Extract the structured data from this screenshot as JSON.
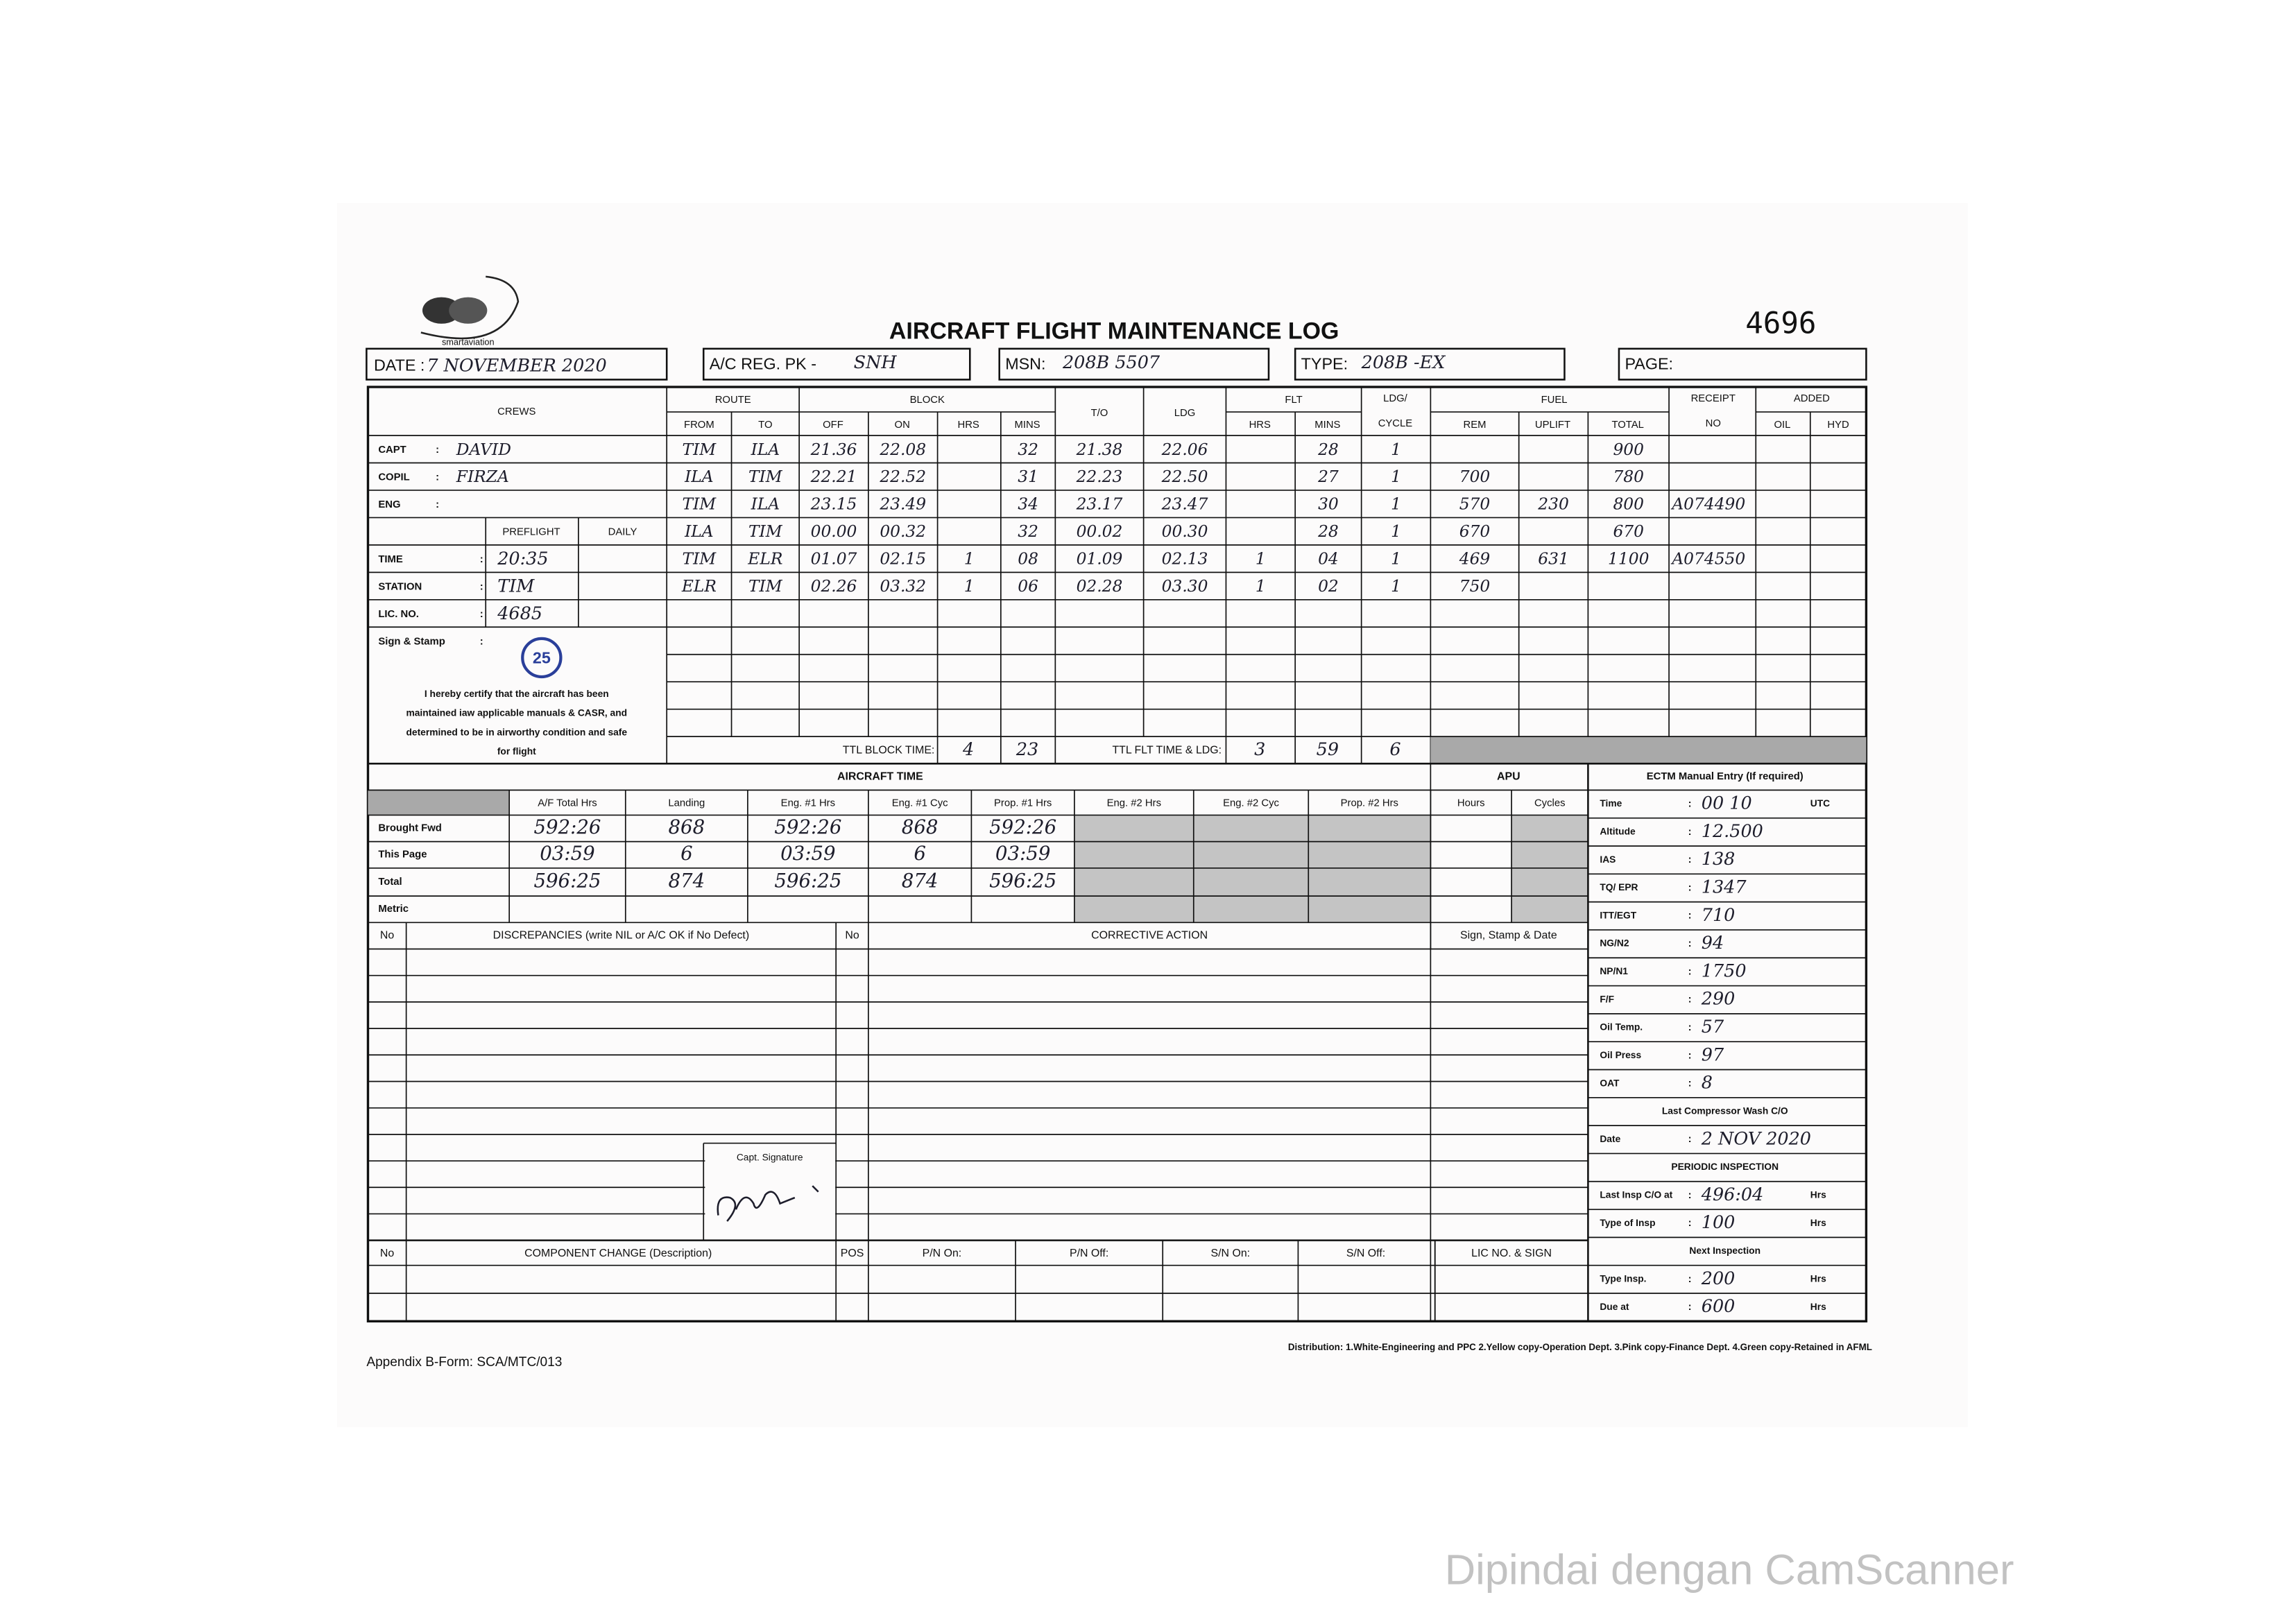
{
  "separator": ":",
  "header": {
    "logo": "smartaviation",
    "title": "AIRCRAFT FLIGHT MAINTENANCE LOG",
    "serial": "4696",
    "date_label": "DATE :",
    "date": "7 NOVEMBER 2020",
    "reg_label": "A/C REG. PK -",
    "reg": "SNH",
    "msn_label": "MSN:",
    "msn": "208B 5507",
    "type_label": "TYPE:",
    "type": "208B -EX",
    "page_label": "PAGE:"
  },
  "flight_log": {
    "group_headers": [
      "CREWS",
      "ROUTE",
      "BLOCK",
      "T/O",
      "LDG",
      "FLT",
      "LDG/",
      "CYCLE",
      "FUEL",
      "RECEIPT",
      "NO",
      "ADDED"
    ],
    "sub_headers": [
      "FROM",
      "TO",
      "OFF",
      "ON",
      "HRS",
      "MINS",
      "HRS",
      "MINS",
      "REM",
      "UPLIFT",
      "TOTAL",
      "OIL",
      "HYD"
    ],
    "crews": [
      {
        "label": "CAPT",
        "value": "DAVID"
      },
      {
        "label": "COPIL",
        "value": "FIRZA"
      },
      {
        "label": "ENG",
        "value": null
      }
    ],
    "rows": [
      [
        "TIM",
        "ILA",
        "21.36",
        "22.08",
        null,
        "32",
        "21.38",
        "22.06",
        null,
        "28",
        "1",
        null,
        null,
        "900",
        null
      ],
      [
        "ILA",
        "TIM",
        "22.21",
        "22.52",
        null,
        "31",
        "22.23",
        "22.50",
        null,
        "27",
        "1",
        "700",
        null,
        "780",
        null
      ],
      [
        "TIM",
        "ILA",
        "23.15",
        "23.49",
        null,
        "34",
        "23.17",
        "23.47",
        null,
        "30",
        "1",
        "570",
        "230",
        "800",
        "A074490"
      ],
      [
        "ILA",
        "TIM",
        "00.00",
        "00.32",
        null,
        "32",
        "00.02",
        "00.30",
        null,
        "28",
        "1",
        "670",
        null,
        "670",
        null
      ],
      [
        "TIM",
        "ELR",
        "01.07",
        "02.15",
        "1",
        "08",
        "01.09",
        "02.13",
        "1",
        "04",
        "1",
        "469",
        "631",
        "1100",
        "A074550"
      ],
      [
        "ELR",
        "TIM",
        "02.26",
        "03.32",
        "1",
        "06",
        "02.28",
        "03.30",
        "1",
        "02",
        "1",
        "750",
        null,
        null,
        null
      ]
    ],
    "preflight": {
      "headers": [
        "PREFLIGHT",
        "DAILY"
      ],
      "fields": [
        {
          "label": "TIME",
          "value": "20:35"
        },
        {
          "label": "STATION",
          "value": "TIM"
        },
        {
          "label": "LIC. NO.",
          "value": "4685"
        },
        {
          "label": "Sign & Stamp",
          "value": null
        }
      ],
      "stamp": "25",
      "certification": [
        "I hereby certify that the aircraft has been",
        "maintained iaw applicable manuals & CASR, and",
        "determined to be in airworthy condition and safe",
        "for flight"
      ]
    },
    "totals": {
      "block_label": "TTL BLOCK TIME:",
      "block_hrs": "4",
      "block_mins": "23",
      "flt_label": "TTL FLT TIME & LDG:",
      "flt_hrs": "3",
      "flt_mins": "59",
      "ldg": "6"
    }
  },
  "aircraft_time": {
    "title": "AIRCRAFT TIME",
    "apu_title": "APU",
    "columns": [
      "A/F Total Hrs",
      "Landing",
      "Eng. #1 Hrs",
      "Eng. #1 Cyc",
      "Prop. #1 Hrs",
      "Eng. #2 Hrs",
      "Eng. #2 Cyc",
      "Prop. #2 Hrs",
      "Hours",
      "Cycles"
    ],
    "rows": [
      {
        "label": "Brought Fwd",
        "values": [
          "592:26",
          "868",
          "592:26",
          "868",
          "592:26",
          null,
          null,
          null,
          null,
          null
        ]
      },
      {
        "label": "This Page",
        "values": [
          "03:59",
          "6",
          "03:59",
          "6",
          "03:59",
          null,
          null,
          null,
          null,
          null
        ]
      },
      {
        "label": "Total",
        "values": [
          "596:25",
          "874",
          "596:25",
          "874",
          "596:25",
          null,
          null,
          null,
          null,
          null
        ]
      },
      {
        "label": "Metric",
        "values": [
          null,
          null,
          null,
          null,
          null,
          null,
          null,
          null,
          null,
          null
        ]
      }
    ]
  },
  "ectm": {
    "title": "ECTM Manual Entry (If required)",
    "entries": [
      {
        "label": "Time",
        "value": "00 10",
        "unit": "UTC"
      },
      {
        "label": "Altitude",
        "value": "12.500",
        "unit": null
      },
      {
        "label": "IAS",
        "value": "138",
        "unit": null
      },
      {
        "label": "TQ/ EPR",
        "value": "1347",
        "unit": null
      },
      {
        "label": "ITT/EGT",
        "value": "710",
        "unit": null
      },
      {
        "label": "NG/N2",
        "value": "94",
        "unit": null
      },
      {
        "label": "NP/N1",
        "value": "1750",
        "unit": null
      },
      {
        "label": "F/F",
        "value": "290",
        "unit": null
      },
      {
        "label": "Oil Temp.",
        "value": "57",
        "unit": null
      },
      {
        "label": "Oil Press",
        "value": "97",
        "unit": null
      },
      {
        "label": "OAT",
        "value": "8",
        "unit": null
      }
    ],
    "compressor_wash": {
      "heading": "Last Compressor Wash C/O",
      "label": "Date",
      "value": "2 NOV 2020"
    },
    "periodic": {
      "heading": "PERIODIC INSPECTION",
      "entries": [
        {
          "label": "Last Insp C/O at",
          "value": "496:04",
          "unit": "Hrs"
        },
        {
          "label": "Type of Insp",
          "value": "100",
          "unit": "Hrs"
        }
      ]
    },
    "next": {
      "heading": "Next Inspection",
      "entries": [
        {
          "label": "Type Insp.",
          "value": "200",
          "unit": "Hrs"
        },
        {
          "label": "Due at",
          "value": "600",
          "unit": "Hrs"
        }
      ]
    }
  },
  "discrepancy": {
    "headers": [
      "No",
      "DISCREPANCIES (write NIL or A/C OK if No Defect)",
      "No",
      "CORRECTIVE ACTION",
      "Sign, Stamp & Date"
    ],
    "signature_label": "Capt. Signature"
  },
  "components": {
    "headers": [
      "No",
      "COMPONENT CHANGE (Description)",
      "POS",
      "P/N On:",
      "P/N Off:",
      "S/N On:",
      "S/N Off:",
      "LIC NO. & SIGN"
    ]
  },
  "footer": {
    "appendix": "Appendix B-Form: SCA/MTC/013",
    "distribution": "Distribution: 1.White-Engineering and PPC  2.Yellow copy-Operation Dept.  3.Pink copy-Finance Dept.  4.Green copy-Retained in AFML",
    "watermark": "Dipindai dengan CamScanner"
  }
}
